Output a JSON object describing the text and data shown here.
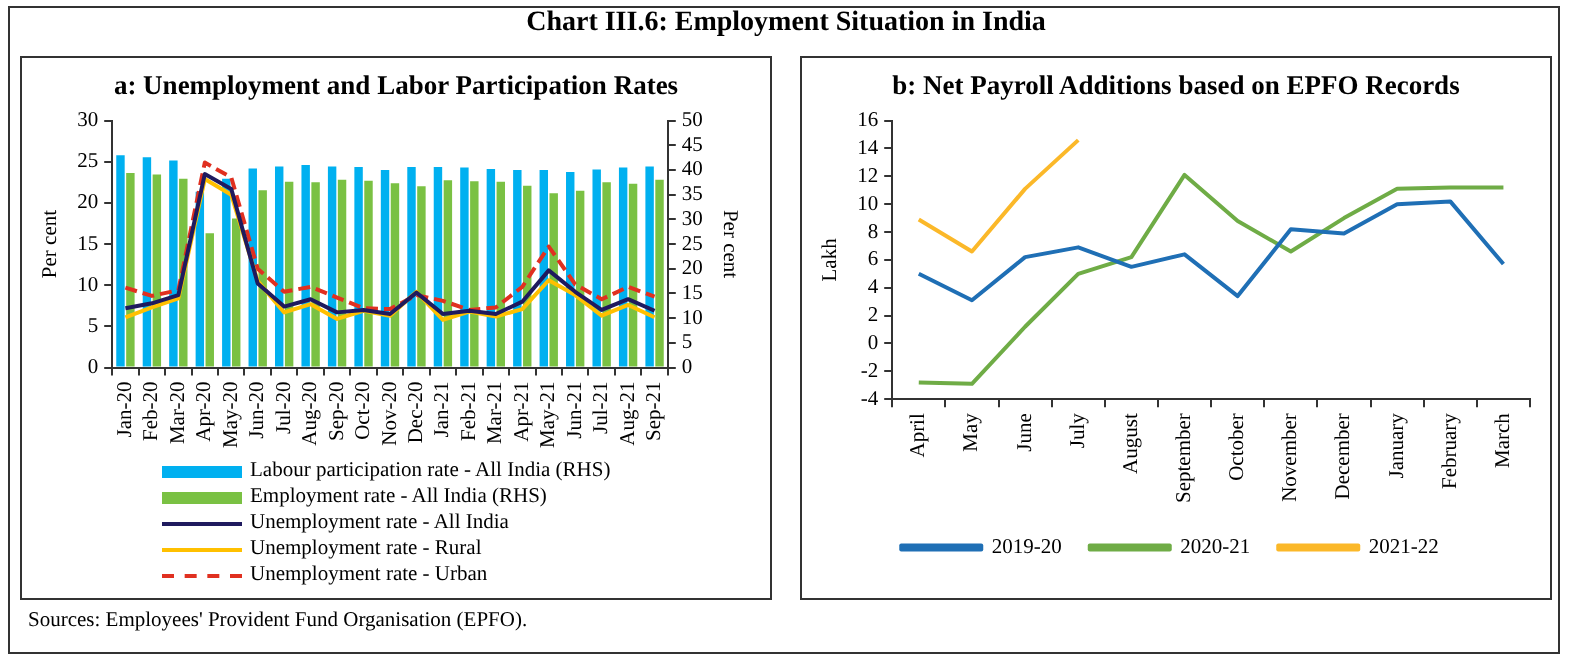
{
  "chart_data": [
    {
      "type": "bar",
      "title": "Chart III.6: Employment Situation in India",
      "subtitle": "a: Unemployment and Labor Participation Rates",
      "ylabel": "Per cent",
      "y2label": "Per cent",
      "categories": [
        "Jan-20",
        "Feb-20",
        "Mar-20",
        "Apr-20",
        "May-20",
        "Jun-20",
        "Jul-20",
        "Aug-20",
        "Sep-20",
        "Oct-20",
        "Nov-20",
        "Dec-20",
        "Jan-21",
        "Feb-21",
        "Mar-21",
        "Apr-21",
        "May-21",
        "Jun-21",
        "Jul-21",
        "Aug-21",
        "Sep-21"
      ],
      "series": [
        {
          "name": "Labour participation rate - All India (RHS)",
          "type": "bar",
          "axis": "y2",
          "color": "#00b0f0",
          "values": [
            43.0,
            42.6,
            41.9,
            35.6,
            38.2,
            40.3,
            40.7,
            41.0,
            40.7,
            40.6,
            40.0,
            40.6,
            40.6,
            40.5,
            40.2,
            40.0,
            40.0,
            39.6,
            40.1,
            40.5,
            40.7
          ]
        },
        {
          "name": "Employment rate - All India (RHS)",
          "type": "bar",
          "axis": "y2",
          "color": "#7ac143",
          "values": [
            39.4,
            39.1,
            38.2,
            27.2,
            30.2,
            35.9,
            37.6,
            37.5,
            38.0,
            37.8,
            37.3,
            36.7,
            37.9,
            37.7,
            37.6,
            36.8,
            35.3,
            35.8,
            37.5,
            37.2,
            38.0
          ]
        },
        {
          "name": "Unemployment rate - All India",
          "type": "line",
          "axis": "y",
          "color": "#1f1a5e",
          "line_style": "solid",
          "values": [
            7.2,
            7.8,
            8.8,
            23.5,
            21.7,
            10.2,
            7.4,
            8.3,
            6.7,
            7.0,
            6.5,
            9.1,
            6.5,
            6.9,
            6.5,
            8.0,
            11.8,
            9.2,
            7.0,
            8.3,
            6.9
          ]
        },
        {
          "name": "Unemployment rate - Rural",
          "type": "line",
          "axis": "y",
          "color": "#ffc000",
          "line_style": "solid",
          "values": [
            6.1,
            7.3,
            8.4,
            22.9,
            21.0,
            10.5,
            6.7,
            7.7,
            5.9,
            6.9,
            6.3,
            9.2,
            5.8,
            6.8,
            6.2,
            7.1,
            10.6,
            8.8,
            6.3,
            7.6,
            6.1
          ]
        },
        {
          "name": "Unemployment rate - Urban",
          "type": "line",
          "axis": "y",
          "color": "#e03020",
          "line_style": "dashed",
          "values": [
            9.7,
            8.7,
            9.4,
            24.9,
            23.1,
            12.0,
            9.2,
            9.8,
            8.5,
            7.2,
            7.1,
            8.8,
            8.1,
            7.0,
            7.3,
            9.8,
            14.7,
            10.1,
            8.3,
            9.8,
            8.6
          ]
        }
      ],
      "ylim": [
        0,
        30
      ],
      "yticks": [
        0,
        5,
        10,
        15,
        20,
        25,
        30
      ],
      "y2lim": [
        0,
        50
      ],
      "y2ticks": [
        0,
        5,
        10,
        15,
        20,
        25,
        30,
        35,
        40,
        45,
        50
      ],
      "grid": false,
      "legend": "bottom",
      "marker": "none"
    },
    {
      "type": "line",
      "subtitle": "b: Net Payroll Additions based on EPFO Records",
      "ylabel": "Lakh",
      "categories": [
        "April",
        "May",
        "June",
        "July",
        "August",
        "September",
        "October",
        "November",
        "December",
        "January",
        "February",
        "March"
      ],
      "series": [
        {
          "name": "2019-20",
          "color": "#1f6fb5",
          "values": [
            5.0,
            3.1,
            6.2,
            6.9,
            5.5,
            6.4,
            3.4,
            8.2,
            7.9,
            10.0,
            10.2,
            5.7
          ]
        },
        {
          "name": "2020-21",
          "color": "#6fac46",
          "values": [
            -2.8,
            -2.9,
            1.2,
            5.0,
            6.2,
            12.1,
            8.8,
            6.6,
            9.0,
            11.1,
            11.2,
            11.2
          ]
        },
        {
          "name": "2021-22",
          "color": "#fbb829",
          "values": [
            8.9,
            6.6,
            11.1,
            14.6,
            null,
            null,
            null,
            null,
            null,
            null,
            null,
            null
          ]
        }
      ],
      "ylim": [
        -4,
        16
      ],
      "yticks": [
        -4,
        -2,
        0,
        2,
        4,
        6,
        8,
        10,
        12,
        14,
        16
      ],
      "grid": false,
      "legend": "bottom",
      "marker": "none",
      "line_style": "solid",
      "annotations": [
        "Sources: Employees' Provident Fund Organisation (EPFO)."
      ]
    }
  ]
}
